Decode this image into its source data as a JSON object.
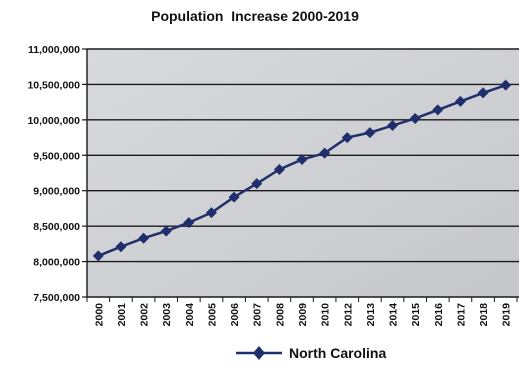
{
  "chart_data": {
    "type": "line",
    "title": "Population  Increase 2000-2019",
    "xlabel": "",
    "ylabel": "",
    "x": [
      "2000",
      "2001",
      "2002",
      "2003",
      "2004",
      "2005",
      "2006",
      "2007",
      "2008",
      "2009",
      "2010",
      "2012",
      "2013",
      "2014",
      "2015",
      "2016",
      "2017",
      "2018",
      "2019"
    ],
    "series": [
      {
        "name": "North Carolina",
        "color": "#1f2f6b",
        "marker": "diamond",
        "values": [
          8080000,
          8210000,
          8330000,
          8430000,
          8550000,
          8690000,
          8910000,
          9100000,
          9300000,
          9440000,
          9530000,
          9750000,
          9820000,
          9920000,
          10020000,
          10140000,
          10260000,
          10380000,
          10490000
        ]
      }
    ],
    "ylim": [
      7500000,
      11000000
    ],
    "yticks": [
      "7,500,000",
      "8,000,000",
      "8,500,000",
      "9,000,000",
      "9,500,000",
      "10,000,000",
      "10,500,000",
      "11,000,000"
    ],
    "ytick_values": [
      7500000,
      8000000,
      8500000,
      9000000,
      9500000,
      10000000,
      10500000,
      11000000
    ],
    "grid": true,
    "legend_position": "bottom"
  }
}
